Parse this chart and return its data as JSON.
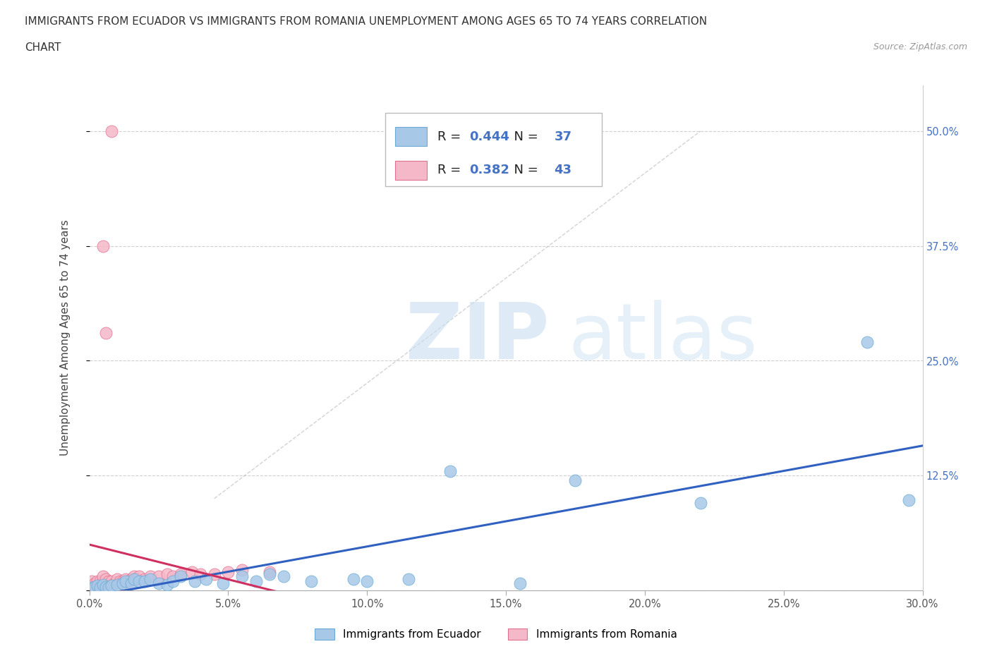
{
  "title_line1": "IMMIGRANTS FROM ECUADOR VS IMMIGRANTS FROM ROMANIA UNEMPLOYMENT AMONG AGES 65 TO 74 YEARS CORRELATION",
  "title_line2": "CHART",
  "source": "Source: ZipAtlas.com",
  "ylabel": "Unemployment Among Ages 65 to 74 years",
  "xlim": [
    0.0,
    0.3
  ],
  "ylim": [
    0.0,
    0.55
  ],
  "ecuador_color": "#a8c8e8",
  "ecuador_edge": "#6aaad4",
  "romania_color": "#f5b8c8",
  "romania_edge": "#e07090",
  "trendline_ecuador_color": "#3060c0",
  "trendline_romania_color": "#d03060",
  "R_ecuador": 0.444,
  "N_ecuador": 37,
  "R_romania": 0.382,
  "N_romania": 43,
  "legend_label_ecuador": "Immigrants from Ecuador",
  "legend_label_romania": "Immigrants from Romania",
  "ytick_right_color": "#4472c4",
  "ecuador_x": [
    0.001,
    0.002,
    0.003,
    0.004,
    0.005,
    0.006,
    0.007,
    0.008,
    0.01,
    0.012,
    0.013,
    0.015,
    0.016,
    0.018,
    0.02,
    0.022,
    0.025,
    0.028,
    0.03,
    0.033,
    0.038,
    0.042,
    0.048,
    0.055,
    0.06,
    0.065,
    0.07,
    0.08,
    0.095,
    0.1,
    0.115,
    0.13,
    0.155,
    0.175,
    0.22,
    0.28,
    0.295
  ],
  "ecuador_y": [
    0.003,
    0.004,
    0.005,
    0.003,
    0.006,
    0.004,
    0.003,
    0.005,
    0.006,
    0.008,
    0.01,
    0.008,
    0.012,
    0.01,
    0.01,
    0.012,
    0.008,
    0.006,
    0.01,
    0.015,
    0.01,
    0.012,
    0.008,
    0.015,
    0.01,
    0.018,
    0.015,
    0.01,
    0.012,
    0.01,
    0.012,
    0.13,
    0.008,
    0.12,
    0.095,
    0.27,
    0.098
  ],
  "romania_x": [
    0.001,
    0.001,
    0.002,
    0.002,
    0.003,
    0.003,
    0.004,
    0.004,
    0.005,
    0.005,
    0.005,
    0.006,
    0.006,
    0.007,
    0.007,
    0.008,
    0.008,
    0.009,
    0.01,
    0.01,
    0.011,
    0.012,
    0.013,
    0.014,
    0.015,
    0.016,
    0.017,
    0.018,
    0.02,
    0.022,
    0.025,
    0.028,
    0.03,
    0.033,
    0.037,
    0.04,
    0.045,
    0.05,
    0.055,
    0.065,
    0.005,
    0.006,
    0.008
  ],
  "romania_y": [
    0.005,
    0.01,
    0.005,
    0.008,
    0.005,
    0.01,
    0.005,
    0.01,
    0.005,
    0.01,
    0.015,
    0.005,
    0.012,
    0.005,
    0.01,
    0.005,
    0.01,
    0.008,
    0.005,
    0.012,
    0.01,
    0.01,
    0.012,
    0.01,
    0.012,
    0.015,
    0.012,
    0.015,
    0.012,
    0.015,
    0.015,
    0.018,
    0.015,
    0.018,
    0.02,
    0.018,
    0.018,
    0.02,
    0.022,
    0.02,
    0.375,
    0.28,
    0.5
  ],
  "grid_color": "#d0d0d0",
  "grid_style": "dashed"
}
